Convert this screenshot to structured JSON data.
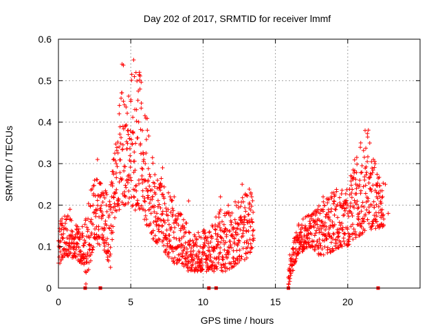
{
  "chart_data": {
    "type": "scatter",
    "title": "Day 202 of 2017, SRMTID for receiver lmmf",
    "xlabel": "GPS time / hours",
    "ylabel": "SRMTID / TECUs",
    "xlim": [
      0,
      25
    ],
    "ylim": [
      0,
      0.6
    ],
    "x_ticks": [
      0,
      5,
      10,
      15,
      20
    ],
    "y_ticks": [
      0,
      0.1,
      0.2,
      0.3,
      0.4,
      0.5,
      0.6
    ],
    "y_tick_labels": [
      "0",
      "0.1",
      "0.2",
      "0.3",
      "0.4",
      "0.5",
      "0.6"
    ],
    "grid": true,
    "marker": "+",
    "series_color": "#ff0000",
    "series": [
      {
        "name": "SRMTID",
        "envelope_hours": [
          0,
          0.5,
          1,
          1.5,
          2,
          2.5,
          3,
          3.5,
          4,
          4.5,
          5,
          5.5,
          6,
          6.5,
          7,
          7.5,
          8,
          8.5,
          9,
          9.5,
          10,
          10.5,
          11,
          11.5,
          12,
          12.5,
          13,
          13.5,
          15.9,
          16.5,
          17,
          17.5,
          18,
          18.5,
          19,
          19.5,
          20,
          20.5,
          21,
          21.5,
          22,
          22.5
        ],
        "envelope_low": [
          0.06,
          0.08,
          0.07,
          0.06,
          0.03,
          0.1,
          0.1,
          0.06,
          0.18,
          0.2,
          0.2,
          0.18,
          0.16,
          0.12,
          0.1,
          0.08,
          0.06,
          0.06,
          0.04,
          0.04,
          0.04,
          0.04,
          0.04,
          0.04,
          0.05,
          0.06,
          0.07,
          0.1,
          0.0,
          0.08,
          0.09,
          0.1,
          0.08,
          0.08,
          0.09,
          0.1,
          0.1,
          0.12,
          0.13,
          0.14,
          0.14,
          0.15
        ],
        "envelope_high": [
          0.16,
          0.18,
          0.17,
          0.14,
          0.2,
          0.28,
          0.25,
          0.22,
          0.38,
          0.55,
          0.52,
          0.56,
          0.45,
          0.32,
          0.28,
          0.24,
          0.2,
          0.18,
          0.15,
          0.14,
          0.14,
          0.15,
          0.18,
          0.2,
          0.2,
          0.22,
          0.25,
          0.22,
          0.06,
          0.15,
          0.17,
          0.18,
          0.2,
          0.22,
          0.24,
          0.24,
          0.25,
          0.32,
          0.36,
          0.39,
          0.28,
          0.27
        ],
        "points": [
          [
            0.1,
            0.06
          ],
          [
            0.3,
            0.12
          ],
          [
            0.6,
            0.14
          ],
          [
            0.8,
            0.19
          ],
          [
            1.1,
            0.1
          ],
          [
            1.4,
            0.12
          ],
          [
            1.7,
            0.08
          ],
          [
            1.9,
            0.01
          ],
          [
            2.2,
            0.16
          ],
          [
            2.5,
            0.26
          ],
          [
            2.7,
            0.31
          ],
          [
            3.0,
            0.12
          ],
          [
            3.3,
            0.2
          ],
          [
            3.6,
            0.05
          ],
          [
            3.8,
            0.22
          ],
          [
            4.0,
            0.3
          ],
          [
            4.2,
            0.42
          ],
          [
            4.4,
            0.54
          ],
          [
            4.6,
            0.39
          ],
          [
            4.8,
            0.27
          ],
          [
            5.0,
            0.45
          ],
          [
            5.2,
            0.55
          ],
          [
            5.4,
            0.43
          ],
          [
            5.6,
            0.52
          ],
          [
            5.8,
            0.38
          ],
          [
            6.0,
            0.3
          ],
          [
            6.2,
            0.26
          ],
          [
            6.5,
            0.22
          ],
          [
            6.8,
            0.18
          ],
          [
            7.0,
            0.15
          ],
          [
            7.2,
            0.29
          ],
          [
            7.4,
            0.12
          ],
          [
            7.7,
            0.1
          ],
          [
            8.0,
            0.22
          ],
          [
            8.3,
            0.08
          ],
          [
            8.6,
            0.06
          ],
          [
            9.0,
            0.21
          ],
          [
            9.2,
            0.05
          ],
          [
            9.5,
            0.06
          ],
          [
            9.8,
            0.1
          ],
          [
            10.0,
            0.08
          ],
          [
            10.3,
            0.05
          ],
          [
            10.6,
            0.12
          ],
          [
            10.9,
            0.07
          ],
          [
            11.2,
            0.22
          ],
          [
            11.5,
            0.18
          ],
          [
            11.8,
            0.06
          ],
          [
            12.1,
            0.09
          ],
          [
            12.4,
            0.13
          ],
          [
            12.7,
            0.25
          ],
          [
            13.0,
            0.11
          ],
          [
            13.3,
            0.23
          ],
          [
            13.5,
            0.12
          ],
          [
            15.9,
            0.01
          ],
          [
            16.0,
            0.08
          ],
          [
            16.3,
            0.12
          ],
          [
            16.6,
            0.15
          ],
          [
            17.0,
            0.1
          ],
          [
            17.3,
            0.13
          ],
          [
            17.7,
            0.16
          ],
          [
            18.0,
            0.08
          ],
          [
            18.3,
            0.22
          ],
          [
            18.7,
            0.13
          ],
          [
            19.0,
            0.15
          ],
          [
            19.3,
            0.17
          ],
          [
            19.6,
            0.1
          ],
          [
            20.0,
            0.2
          ],
          [
            20.3,
            0.13
          ],
          [
            20.6,
            0.24
          ],
          [
            20.9,
            0.35
          ],
          [
            21.2,
            0.38
          ],
          [
            21.4,
            0.21
          ],
          [
            21.7,
            0.16
          ],
          [
            22.0,
            0.22
          ],
          [
            22.3,
            0.17
          ],
          [
            22.6,
            0.25
          ],
          [
            22.8,
            0.18
          ]
        ],
        "outliers_at_zero": [
          [
            1.85,
            0
          ],
          [
            2.9,
            0
          ],
          [
            10.4,
            0
          ],
          [
            10.9,
            0
          ],
          [
            15.9,
            0
          ],
          [
            22.1,
            0
          ]
        ]
      }
    ]
  }
}
